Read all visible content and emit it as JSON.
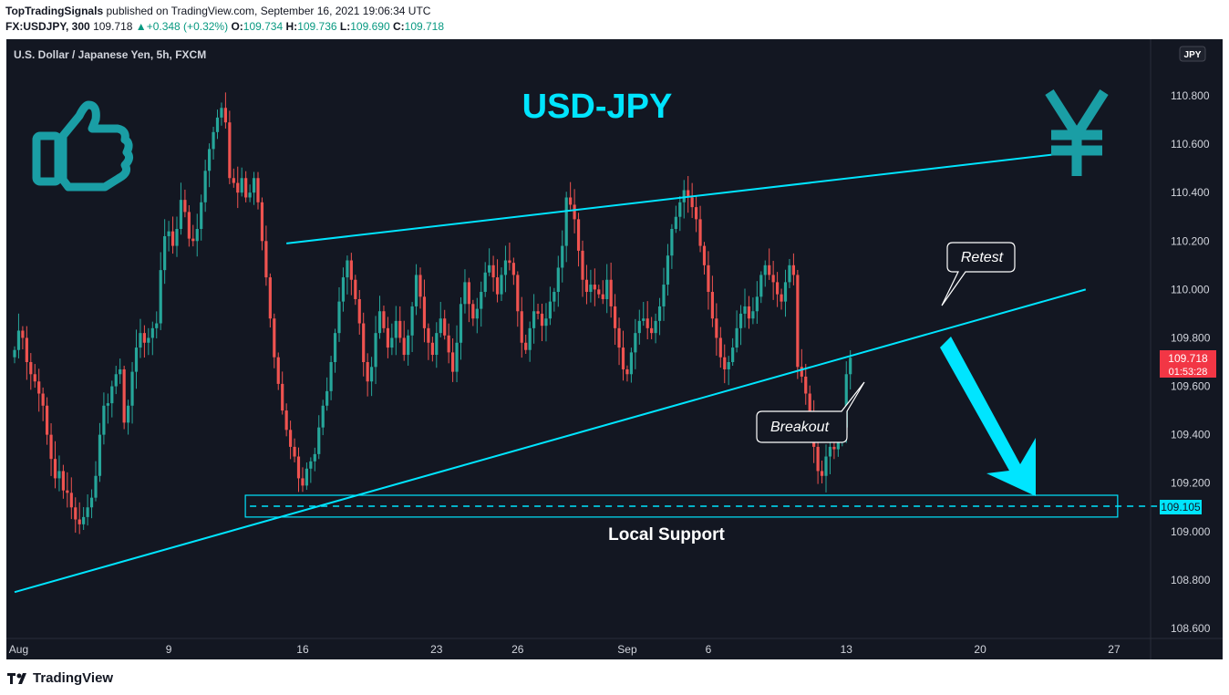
{
  "header": {
    "publisher": "TopTradingSignals",
    "published_text": "published on TradingView.com, September 16, 2021 19:06:34 UTC",
    "symbol": "FX:USDJPY, 300",
    "last": "109.718",
    "change_arrow": "▲",
    "change": "+0.348 (+0.32%)",
    "o_label": "O:",
    "o_value": "109.734",
    "h_label": "H:",
    "h_value": "109.736",
    "l_label": "L:",
    "l_value": "109.690",
    "c_label": "C:",
    "c_value": "109.718"
  },
  "chart": {
    "instrument_title": "U.S. Dollar / Japanese Yen, 5h, FXCM",
    "currency_badge": "JPY",
    "main_title": "USD-JPY",
    "price_label": {
      "value": "109.718",
      "countdown": "01:53:28"
    },
    "support_label": "109.105",
    "annotations": {
      "retest": "Retest",
      "breakout": "Breakout",
      "support": "Local Support"
    },
    "icons": [
      "thumbs-up-icon",
      "yen-icon",
      "down-arrow-icon"
    ]
  },
  "footer": {
    "brand": "TradingView"
  },
  "colors": {
    "background": "#131722",
    "up": "#26a69a",
    "down": "#ef5350",
    "accent": "#00e5ff",
    "icon_teal": "#1a9ea5",
    "grid": "#1e222d",
    "price_tag": "#f23645",
    "support_tag": "#00e5ff"
  },
  "chart_data": {
    "type": "candlestick",
    "title": "USD-JPY",
    "x_tick_labels": [
      "Aug",
      "9",
      "16",
      "23",
      "26",
      "Sep",
      "6",
      "13",
      "20",
      "27"
    ],
    "y_tick_labels": [
      "108.600",
      "108.800",
      "109.000",
      "109.200",
      "109.400",
      "109.600",
      "109.800",
      "110.000",
      "110.200",
      "110.400",
      "110.600",
      "110.800"
    ],
    "ylim": [
      108.55,
      110.95
    ],
    "grid": false,
    "horizontal_levels": [
      {
        "price": 109.105,
        "style": "dashed",
        "label": "109.105"
      }
    ],
    "support_zone": {
      "from": 109.06,
      "to": 109.15,
      "start_bar": 58,
      "end_bar": 273
    },
    "trendlines": [
      {
        "name": "upper",
        "start": {
          "bar": 67,
          "price": 110.19
        },
        "end": {
          "bar": 260,
          "price": 110.565
        }
      },
      {
        "name": "lower",
        "start": {
          "bar": 0,
          "price": 108.75
        },
        "end": {
          "bar": 264,
          "price": 110.0
        }
      }
    ],
    "closes": [
      109.75,
      109.83,
      109.8,
      109.7,
      109.65,
      109.62,
      109.57,
      109.52,
      109.4,
      109.3,
      109.22,
      109.25,
      109.17,
      109.16,
      109.1,
      109.05,
      109.03,
      109.06,
      109.1,
      109.14,
      109.23,
      109.4,
      109.52,
      109.53,
      109.6,
      109.65,
      109.67,
      109.45,
      109.52,
      109.66,
      109.76,
      109.82,
      109.78,
      109.8,
      109.84,
      109.86,
      110.08,
      110.22,
      110.24,
      110.18,
      110.25,
      110.37,
      110.32,
      110.21,
      110.2,
      110.25,
      110.36,
      110.49,
      110.58,
      110.65,
      110.71,
      110.75,
      110.69,
      110.46,
      110.44,
      110.4,
      110.46,
      110.38,
      110.4,
      110.46,
      110.36,
      110.2,
      110.05,
      109.88,
      109.72,
      109.61,
      109.5,
      109.42,
      109.35,
      109.31,
      109.22,
      109.19,
      109.26,
      109.29,
      109.32,
      109.43,
      109.52,
      109.58,
      109.7,
      109.82,
      109.95,
      110.05,
      110.12,
      110.04,
      109.96,
      109.86,
      109.7,
      109.62,
      109.68,
      109.82,
      109.91,
      109.84,
      109.76,
      109.8,
      109.87,
      109.8,
      109.73,
      109.81,
      109.93,
      110.06,
      109.97,
      109.84,
      109.78,
      109.73,
      109.82,
      109.88,
      109.81,
      109.74,
      109.66,
      109.78,
      109.94,
      110.03,
      109.94,
      109.88,
      109.92,
      109.99,
      110.07,
      110.1,
      110.05,
      109.98,
      110.06,
      110.12,
      110.11,
      110.06,
      109.91,
      109.78,
      109.75,
      109.84,
      109.91,
      109.9,
      109.85,
      109.88,
      109.95,
      109.99,
      110.09,
      110.18,
      110.38,
      110.35,
      110.29,
      110.16,
      110.04,
      109.99,
      110.02,
      110.0,
      109.98,
      109.96,
      110.04,
      109.93,
      109.84,
      109.76,
      109.67,
      109.65,
      109.74,
      109.82,
      109.87,
      109.88,
      109.84,
      109.82,
      109.87,
      109.93,
      110.02,
      110.14,
      110.25,
      110.3,
      110.36,
      110.41,
      110.38,
      110.34,
      110.29,
      110.18,
      110.1,
      109.99,
      109.88,
      109.8,
      109.72,
      109.67,
      109.7,
      109.76,
      109.84,
      109.9,
      109.93,
      109.88,
      109.91,
      109.97,
      110.06,
      110.1,
      110.06,
      110.03,
      109.98,
      109.95,
      110.03,
      110.1,
      110.06,
      109.68,
      109.64,
      109.57,
      109.48,
      109.35,
      109.25,
      109.23,
      109.31,
      109.35,
      109.34,
      109.38,
      109.43,
      109.65,
      109.718
    ],
    "series": [
      {
        "name": "FX:USDJPY, 300",
        "last": 109.718,
        "open": 109.734,
        "high": 109.736,
        "low": 109.69
      }
    ]
  }
}
